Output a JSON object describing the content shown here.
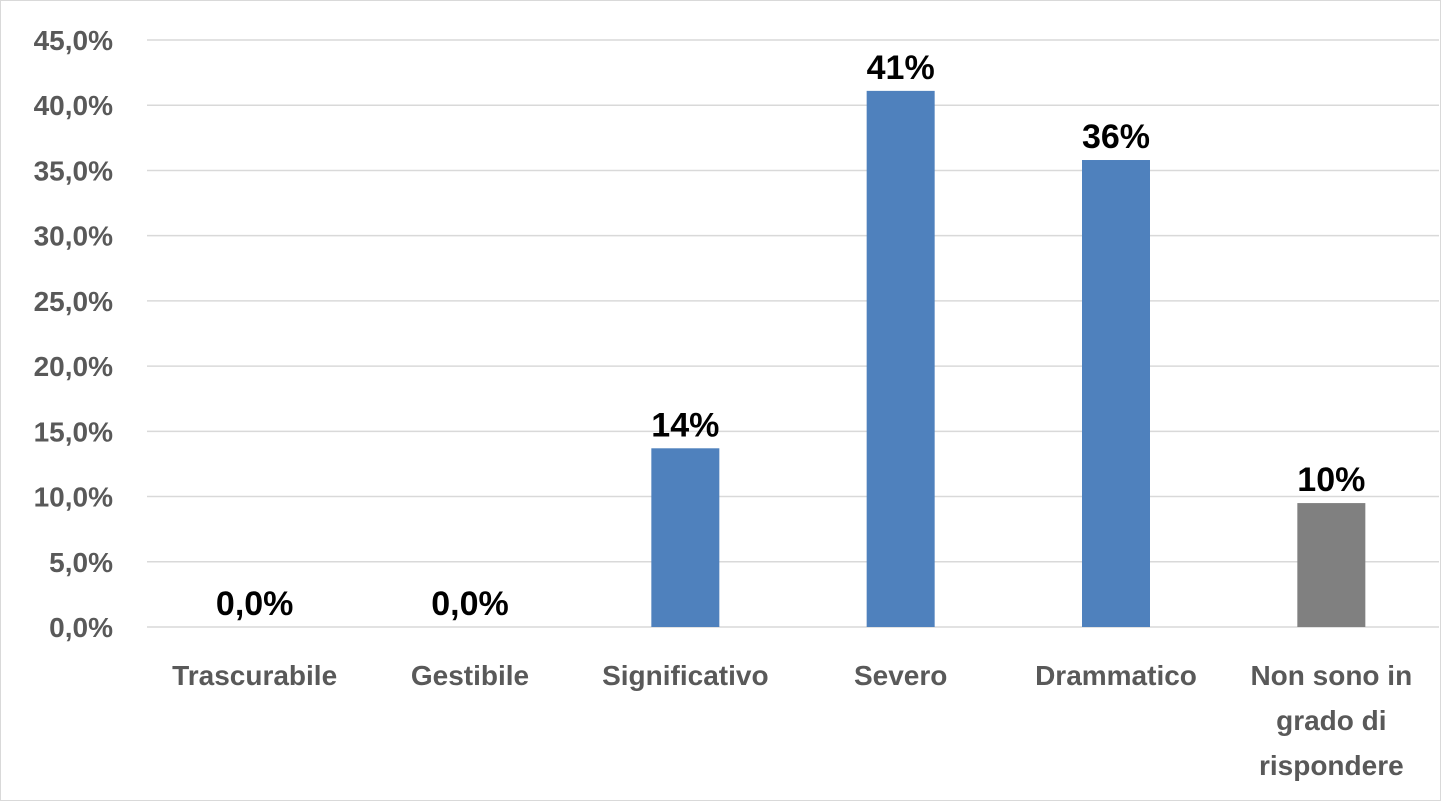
{
  "chart_data": {
    "type": "bar",
    "categories": [
      "Trascurabile",
      "Gestibile",
      "Significativo",
      "Severo",
      "Drammatico",
      "Non sono in grado di rispondere"
    ],
    "category_lines": [
      [
        "Trascurabile"
      ],
      [
        "Gestibile"
      ],
      [
        "Significativo"
      ],
      [
        "Severo"
      ],
      [
        "Drammatico"
      ],
      [
        "Non sono in",
        "grado di",
        "rispondere"
      ]
    ],
    "values": [
      0.0,
      0.0,
      13.7,
      41.1,
      35.8,
      9.5
    ],
    "data_labels": [
      "0,0%",
      "0,0%",
      "14%",
      "41%",
      "36%",
      "10%"
    ],
    "bar_colors": [
      "#4F81BD",
      "#4F81BD",
      "#4F81BD",
      "#4F81BD",
      "#4F81BD",
      "#808080"
    ],
    "ylim": [
      0,
      45
    ],
    "yticks": [
      0,
      5,
      10,
      15,
      20,
      25,
      30,
      35,
      40,
      45
    ],
    "ytick_labels": [
      "0,0%",
      "5,0%",
      "10,0%",
      "15,0%",
      "20,0%",
      "25,0%",
      "30,0%",
      "35,0%",
      "40,0%",
      "45,0%"
    ],
    "grid": true,
    "legend": "none",
    "title": "",
    "xlabel": "",
    "ylabel": ""
  }
}
